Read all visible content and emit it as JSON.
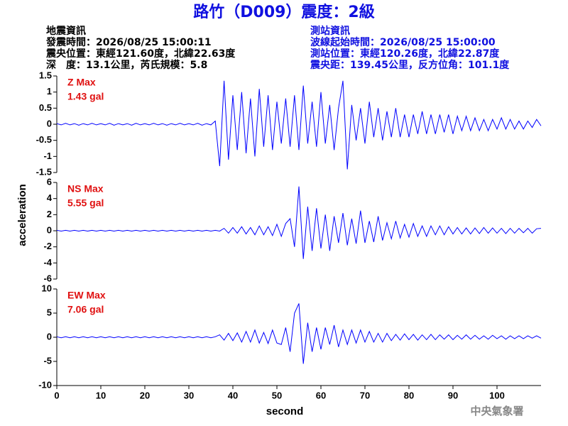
{
  "title": "路竹（D009）震度：2級",
  "info_left": [
    "地震資訊",
    "發震時間：2026/08/25 15:00:11",
    "震央位置：東經121.60度，北緯22.63度",
    "深　度：13.1公里，芮氏規模：5.8"
  ],
  "info_right": [
    "測站資訊",
    "波線起始時間：2026/08/25 15:00:00",
    "測站位置：東經120.26度，北緯22.87度",
    "震央距：139.45公里，反方位角：101.1度"
  ],
  "ylabel": "acceleration",
  "xlabel": "second",
  "credit": "中央氣象署",
  "chart_data": [
    {
      "type": "line",
      "annotation": [
        "Z Max",
        "1.43 gal"
      ],
      "color": "#0000ff",
      "xlim": [
        0,
        110
      ],
      "ylim": [
        -1.5,
        1.5
      ],
      "yticks": [
        -1.5,
        -1,
        -0.5,
        0,
        0.5,
        1,
        1.5
      ],
      "x": [
        0,
        1,
        2,
        3,
        4,
        5,
        6,
        7,
        8,
        9,
        10,
        11,
        12,
        13,
        14,
        15,
        16,
        17,
        18,
        19,
        20,
        21,
        22,
        23,
        24,
        25,
        26,
        27,
        28,
        29,
        30,
        31,
        32,
        33,
        34,
        35,
        36,
        37,
        38,
        39,
        40,
        41,
        42,
        43,
        44,
        45,
        46,
        47,
        48,
        49,
        50,
        51,
        52,
        53,
        54,
        55,
        56,
        57,
        58,
        59,
        60,
        61,
        62,
        63,
        64,
        65,
        66,
        67,
        68,
        69,
        70,
        71,
        72,
        73,
        74,
        75,
        76,
        77,
        78,
        79,
        80,
        81,
        82,
        83,
        84,
        85,
        86,
        87,
        88,
        89,
        90,
        91,
        92,
        93,
        94,
        95,
        96,
        97,
        98,
        99,
        100,
        101,
        102,
        103,
        104,
        105,
        106,
        107,
        108,
        109,
        110
      ],
      "values": [
        0.02,
        -0.02,
        0.03,
        -0.02,
        0.02,
        -0.03,
        0.02,
        -0.02,
        0.03,
        -0.02,
        0.02,
        -0.02,
        0.03,
        -0.03,
        0.02,
        -0.02,
        0.02,
        -0.03,
        0.03,
        -0.02,
        0.02,
        -0.02,
        0.03,
        -0.02,
        0.02,
        -0.03,
        0.02,
        -0.02,
        0.03,
        -0.02,
        0.02,
        -0.02,
        0.03,
        -0.03,
        0.02,
        -0.02,
        0.1,
        -1.3,
        1.35,
        -1.1,
        0.9,
        -0.8,
        1.0,
        -0.9,
        0.8,
        -1.0,
        1.1,
        -0.7,
        0.9,
        -0.8,
        0.7,
        -0.6,
        0.8,
        -0.7,
        0.9,
        -0.8,
        1.2,
        -0.6,
        0.7,
        -0.7,
        1.0,
        -0.6,
        0.6,
        -0.8,
        0.5,
        1.35,
        -1.4,
        0.6,
        -0.5,
        0.5,
        -0.6,
        0.7,
        -0.4,
        0.5,
        -0.5,
        0.4,
        -0.4,
        0.5,
        -0.4,
        0.3,
        -0.4,
        0.3,
        -0.3,
        0.4,
        -0.3,
        0.3,
        -0.3,
        0.3,
        -0.25,
        0.3,
        -0.3,
        0.25,
        -0.2,
        0.25,
        -0.2,
        0.2,
        -0.2,
        0.15,
        -0.2,
        0.15,
        -0.15,
        0.2,
        -0.15,
        0.15,
        -0.15,
        0.1,
        -0.15,
        0.1,
        -0.1,
        0.15,
        -0.05
      ]
    },
    {
      "type": "line",
      "annotation": [
        "NS Max",
        "5.55 gal"
      ],
      "color": "#0000ff",
      "xlim": [
        0,
        110
      ],
      "ylim": [
        -6,
        6
      ],
      "yticks": [
        -6,
        -4,
        -2,
        0,
        2,
        4,
        6
      ],
      "x": [
        0,
        1,
        2,
        3,
        4,
        5,
        6,
        7,
        8,
        9,
        10,
        11,
        12,
        13,
        14,
        15,
        16,
        17,
        18,
        19,
        20,
        21,
        22,
        23,
        24,
        25,
        26,
        27,
        28,
        29,
        30,
        31,
        32,
        33,
        34,
        35,
        36,
        37,
        38,
        39,
        40,
        41,
        42,
        43,
        44,
        45,
        46,
        47,
        48,
        49,
        50,
        51,
        52,
        53,
        54,
        55,
        56,
        57,
        58,
        59,
        60,
        61,
        62,
        63,
        64,
        65,
        66,
        67,
        68,
        69,
        70,
        71,
        72,
        73,
        74,
        75,
        76,
        77,
        78,
        79,
        80,
        81,
        82,
        83,
        84,
        85,
        86,
        87,
        88,
        89,
        90,
        91,
        92,
        93,
        94,
        95,
        96,
        97,
        98,
        99,
        100,
        101,
        102,
        103,
        104,
        105,
        106,
        107,
        108,
        109,
        110
      ],
      "values": [
        0.05,
        -0.04,
        0.05,
        -0.04,
        0.05,
        -0.04,
        0.05,
        -0.04,
        0.05,
        -0.04,
        0.05,
        -0.04,
        0.05,
        -0.04,
        0.05,
        -0.04,
        0.05,
        -0.04,
        0.05,
        -0.04,
        0.05,
        -0.04,
        0.05,
        -0.04,
        0.05,
        -0.04,
        0.05,
        -0.04,
        0.05,
        -0.04,
        0.05,
        -0.04,
        0.05,
        -0.04,
        0.05,
        -0.04,
        0.05,
        -0.04,
        0.3,
        -0.3,
        0.4,
        -0.3,
        0.5,
        -0.4,
        0.4,
        -0.5,
        0.6,
        -0.5,
        0.5,
        -0.6,
        0.8,
        -0.7,
        0.9,
        1.5,
        -2,
        5.5,
        -3.5,
        3,
        -2.5,
        2.8,
        -2.2,
        2,
        -2.5,
        1.8,
        -1.5,
        2.2,
        -1.8,
        1.5,
        -1.6,
        2.5,
        -1.5,
        1.2,
        -1.4,
        1.8,
        -1.2,
        1.0,
        -1.0,
        1.2,
        -0.9,
        0.8,
        -0.8,
        0.9,
        -0.7,
        0.6,
        -0.7,
        0.6,
        -0.5,
        0.6,
        -0.5,
        0.5,
        -0.4,
        0.4,
        -0.4,
        0.35,
        -0.4,
        0.35,
        -0.35,
        0.4,
        -0.3,
        0.35,
        -0.3,
        0.3,
        -0.35,
        0.3,
        -0.3,
        0.3,
        -0.25,
        0.3,
        -0.3,
        0.25,
        0.3
      ]
    },
    {
      "type": "line",
      "annotation": [
        "EW Max",
        "7.06 gal"
      ],
      "color": "#0000ff",
      "xlim": [
        0,
        110
      ],
      "ylim": [
        -10,
        10
      ],
      "yticks": [
        -10,
        -5,
        0,
        5,
        10
      ],
      "xticks": [
        0,
        10,
        20,
        30,
        40,
        50,
        60,
        70,
        80,
        90,
        100
      ],
      "x": [
        0,
        1,
        2,
        3,
        4,
        5,
        6,
        7,
        8,
        9,
        10,
        11,
        12,
        13,
        14,
        15,
        16,
        17,
        18,
        19,
        20,
        21,
        22,
        23,
        24,
        25,
        26,
        27,
        28,
        29,
        30,
        31,
        32,
        33,
        34,
        35,
        36,
        37,
        38,
        39,
        40,
        41,
        42,
        43,
        44,
        45,
        46,
        47,
        48,
        49,
        50,
        51,
        52,
        53,
        54,
        55,
        56,
        57,
        58,
        59,
        60,
        61,
        62,
        63,
        64,
        65,
        66,
        67,
        68,
        69,
        70,
        71,
        72,
        73,
        74,
        75,
        76,
        77,
        78,
        79,
        80,
        81,
        82,
        83,
        84,
        85,
        86,
        87,
        88,
        89,
        90,
        91,
        92,
        93,
        94,
        95,
        96,
        97,
        98,
        99,
        100,
        101,
        102,
        103,
        104,
        105,
        106,
        107,
        108,
        109,
        110
      ],
      "values": [
        0.1,
        -0.1,
        0.1,
        -0.1,
        0.1,
        -0.1,
        0.1,
        -0.1,
        0.1,
        -0.1,
        0.1,
        -0.1,
        0.1,
        -0.1,
        0.1,
        -0.1,
        0.1,
        -0.1,
        0.1,
        -0.1,
        0.1,
        -0.1,
        0.1,
        -0.1,
        0.1,
        -0.1,
        0.1,
        -0.1,
        0.1,
        -0.1,
        0.1,
        -0.1,
        0.1,
        -0.1,
        0.1,
        -0.1,
        0.1,
        0.5,
        -0.6,
        0.8,
        -0.7,
        0.9,
        -1.0,
        1.2,
        -1.0,
        1.5,
        -1.2,
        1.0,
        -1.3,
        1.5,
        -1.2,
        -1.5,
        2,
        -3,
        5,
        7,
        -5.5,
        3,
        -3,
        2,
        -2.5,
        2,
        -1.5,
        2.5,
        -2,
        1.5,
        -1.5,
        1.5,
        -1.2,
        1.5,
        -1,
        1.2,
        -1.0,
        0.8,
        -1,
        0.8,
        -0.7,
        0.6,
        -0.6,
        0.7,
        -0.5,
        0.6,
        -0.6,
        0.5,
        -0.5,
        0.6,
        -0.5,
        0.5,
        -0.4,
        0.5,
        -0.5,
        0.4,
        -0.4,
        0.5,
        -0.4,
        0.4,
        -0.4,
        0.3,
        -0.4,
        0.4,
        -0.3,
        0.3,
        -0.4,
        0.3,
        -0.3,
        0.3,
        -0.3,
        0.3,
        -0.2,
        0.3,
        -0.2
      ]
    }
  ]
}
